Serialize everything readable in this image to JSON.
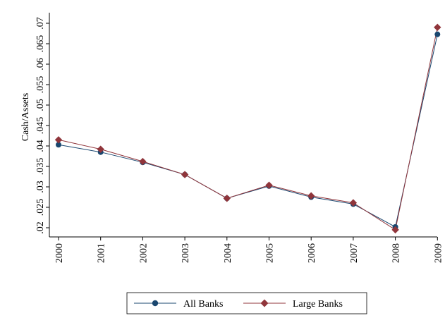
{
  "chart_data": {
    "type": "line",
    "title": "",
    "xlabel": "",
    "ylabel": "Cash/Assets",
    "x": [
      "2000",
      "2001",
      "2002",
      "2003",
      "2004",
      "2005",
      "2006",
      "2007",
      "2008",
      "2009"
    ],
    "y_ticks": [
      ".02",
      ".025",
      ".03",
      ".035",
      ".04",
      ".045",
      ".05",
      ".055",
      ".06",
      ".065",
      ".07"
    ],
    "ylim": [
      0.02,
      0.07
    ],
    "grid": false,
    "legend_position": "bottom",
    "series": [
      {
        "name": "All Banks",
        "marker": "circle",
        "color": "#1a476f",
        "values": [
          0.0403,
          0.0385,
          0.036,
          0.033,
          0.0272,
          0.0302,
          0.0275,
          0.0258,
          0.0202,
          0.0673
        ]
      },
      {
        "name": "Large Banks",
        "marker": "diamond",
        "color": "#90353b",
        "values": [
          0.0415,
          0.0392,
          0.0362,
          0.033,
          0.0272,
          0.0304,
          0.0278,
          0.0261,
          0.0195,
          0.069
        ]
      }
    ]
  }
}
